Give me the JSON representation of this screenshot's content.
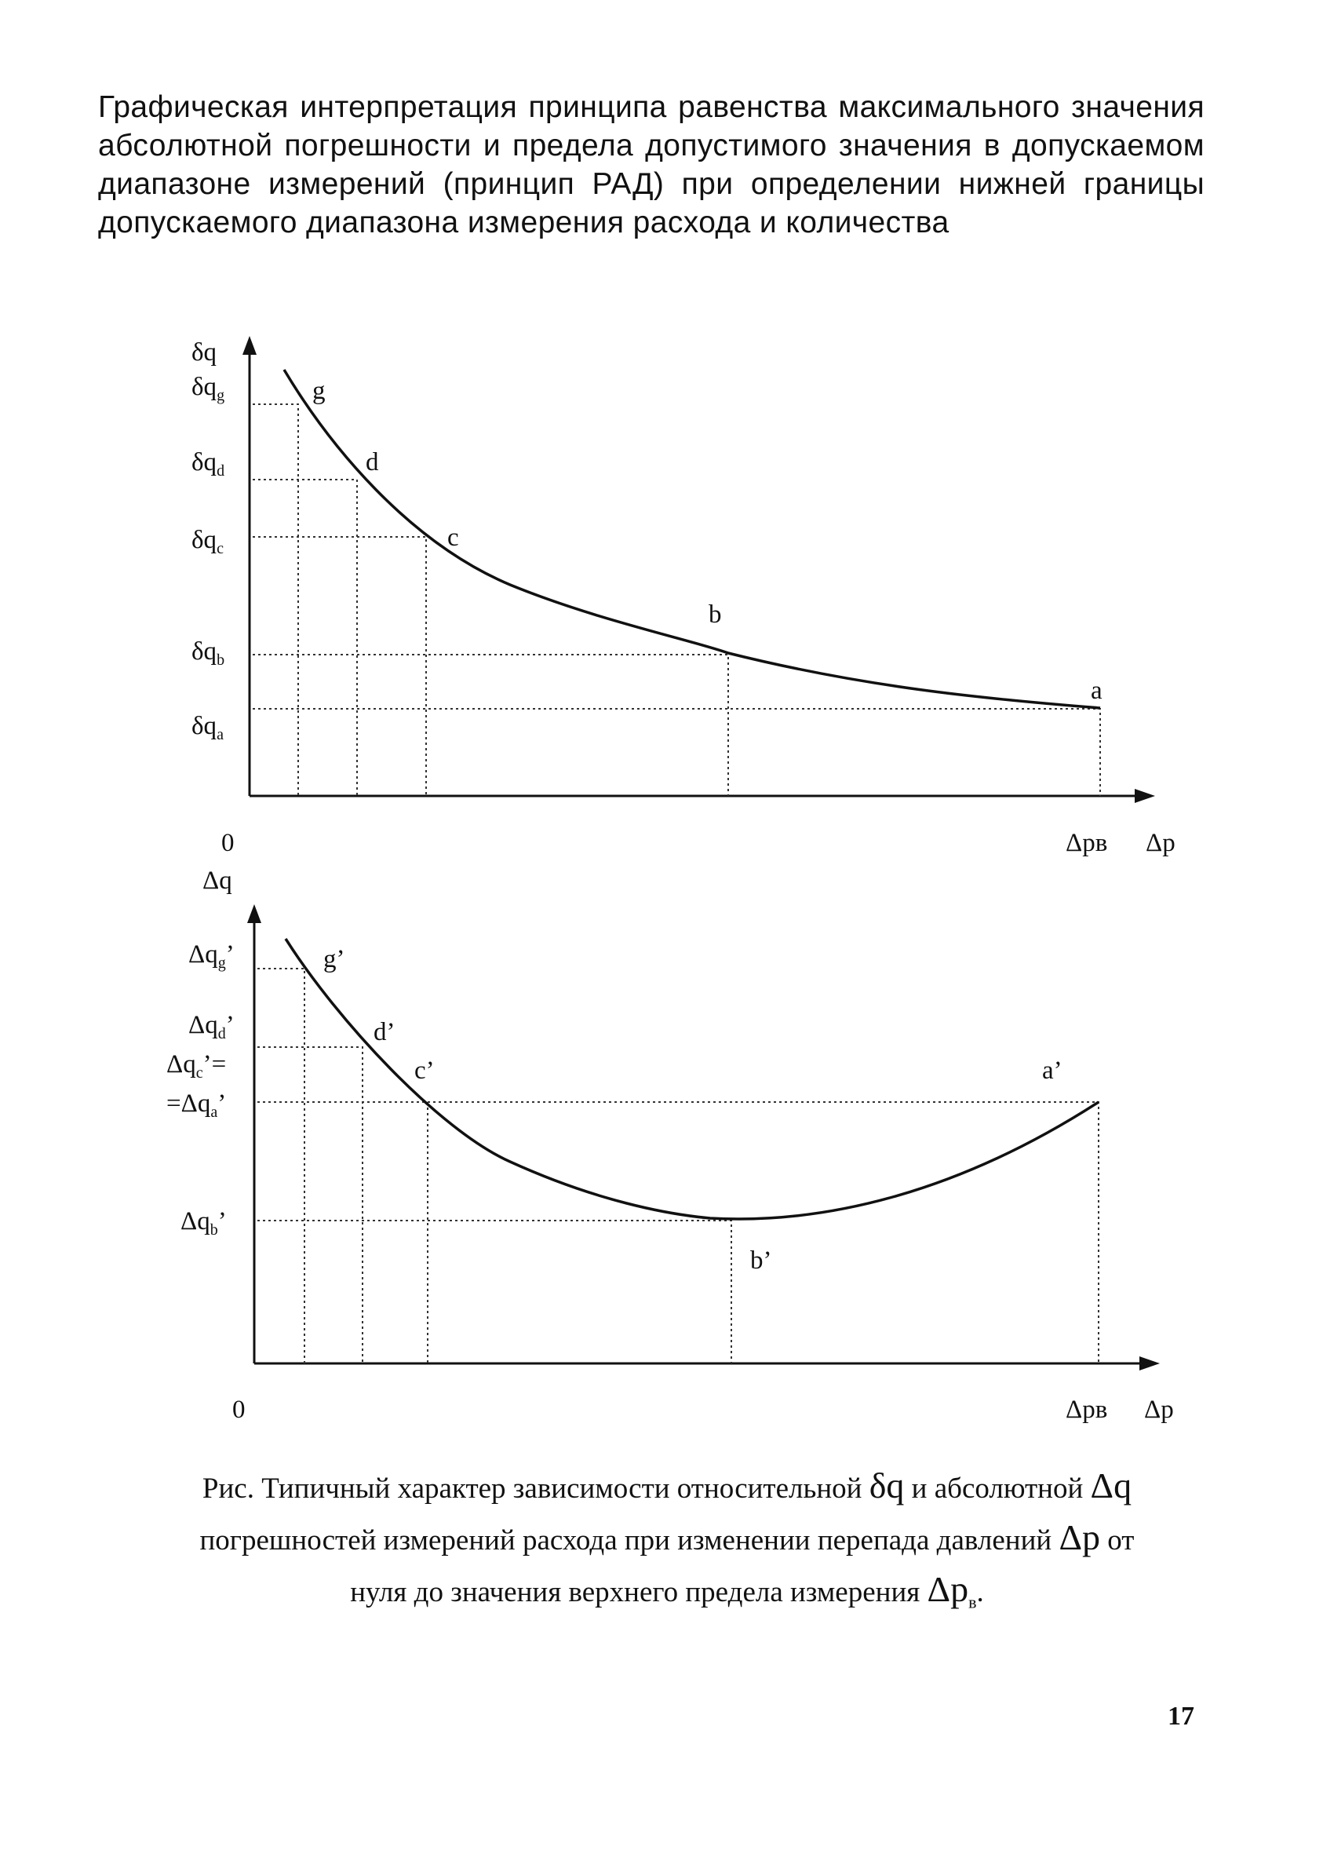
{
  "heading": "Графическая интерпретация принципа равенства максимального значения абсолютной погрешности и предела допустимого значения в допускаемом диапазоне измерений (принцип РАД) при определении нижней границы допускаемого диапазона измерения расхода и количества",
  "top_chart": {
    "y_axis": "δq",
    "x_axis": "Δp",
    "origin": "0",
    "x_mark": "Δpв",
    "y_ticks": [
      {
        "base": "δq",
        "sub": "g"
      },
      {
        "base": "δq",
        "sub": "d"
      },
      {
        "base": "δq",
        "sub": "c"
      },
      {
        "base": "δq",
        "sub": "b"
      },
      {
        "base": "δq",
        "sub": "a"
      }
    ],
    "points": [
      "g",
      "d",
      "c",
      "b",
      "a"
    ]
  },
  "bottom_chart": {
    "y_axis": "Δq",
    "x_axis": "Δp",
    "origin": "0",
    "x_mark": "Δpв",
    "y_ticks": [
      {
        "base": "Δq",
        "sub": "g",
        "suffix": "’"
      },
      {
        "base": "Δq",
        "sub": "d",
        "suffix": "’"
      },
      {
        "base": "Δq",
        "sub": "c",
        "suffix": "’="
      },
      {
        "prefix": "=Δq",
        "sub": "a",
        "suffix": "’"
      },
      {
        "base": "Δq",
        "sub": "b",
        "suffix": "’"
      }
    ],
    "points": [
      "g’",
      "d’",
      "c’",
      "a’",
      "b’"
    ]
  },
  "caption": {
    "line1_a": "Рис. Типичный характер зависимости относительной ",
    "sym_dq": "δq",
    "line1_b": " и абсолютной ",
    "sym_Dq": "Δq",
    "line2_a": "погрешностей измерений расхода при изменении перепада давлений ",
    "sym_Dp": "Δp",
    "line2_b": " от",
    "line3_a": "нуля до значения верхнего предела измерения ",
    "sym_Dpv": "Δp",
    "sym_Dpv_sub": "в",
    "line3_b": "."
  },
  "page_number": "17"
}
